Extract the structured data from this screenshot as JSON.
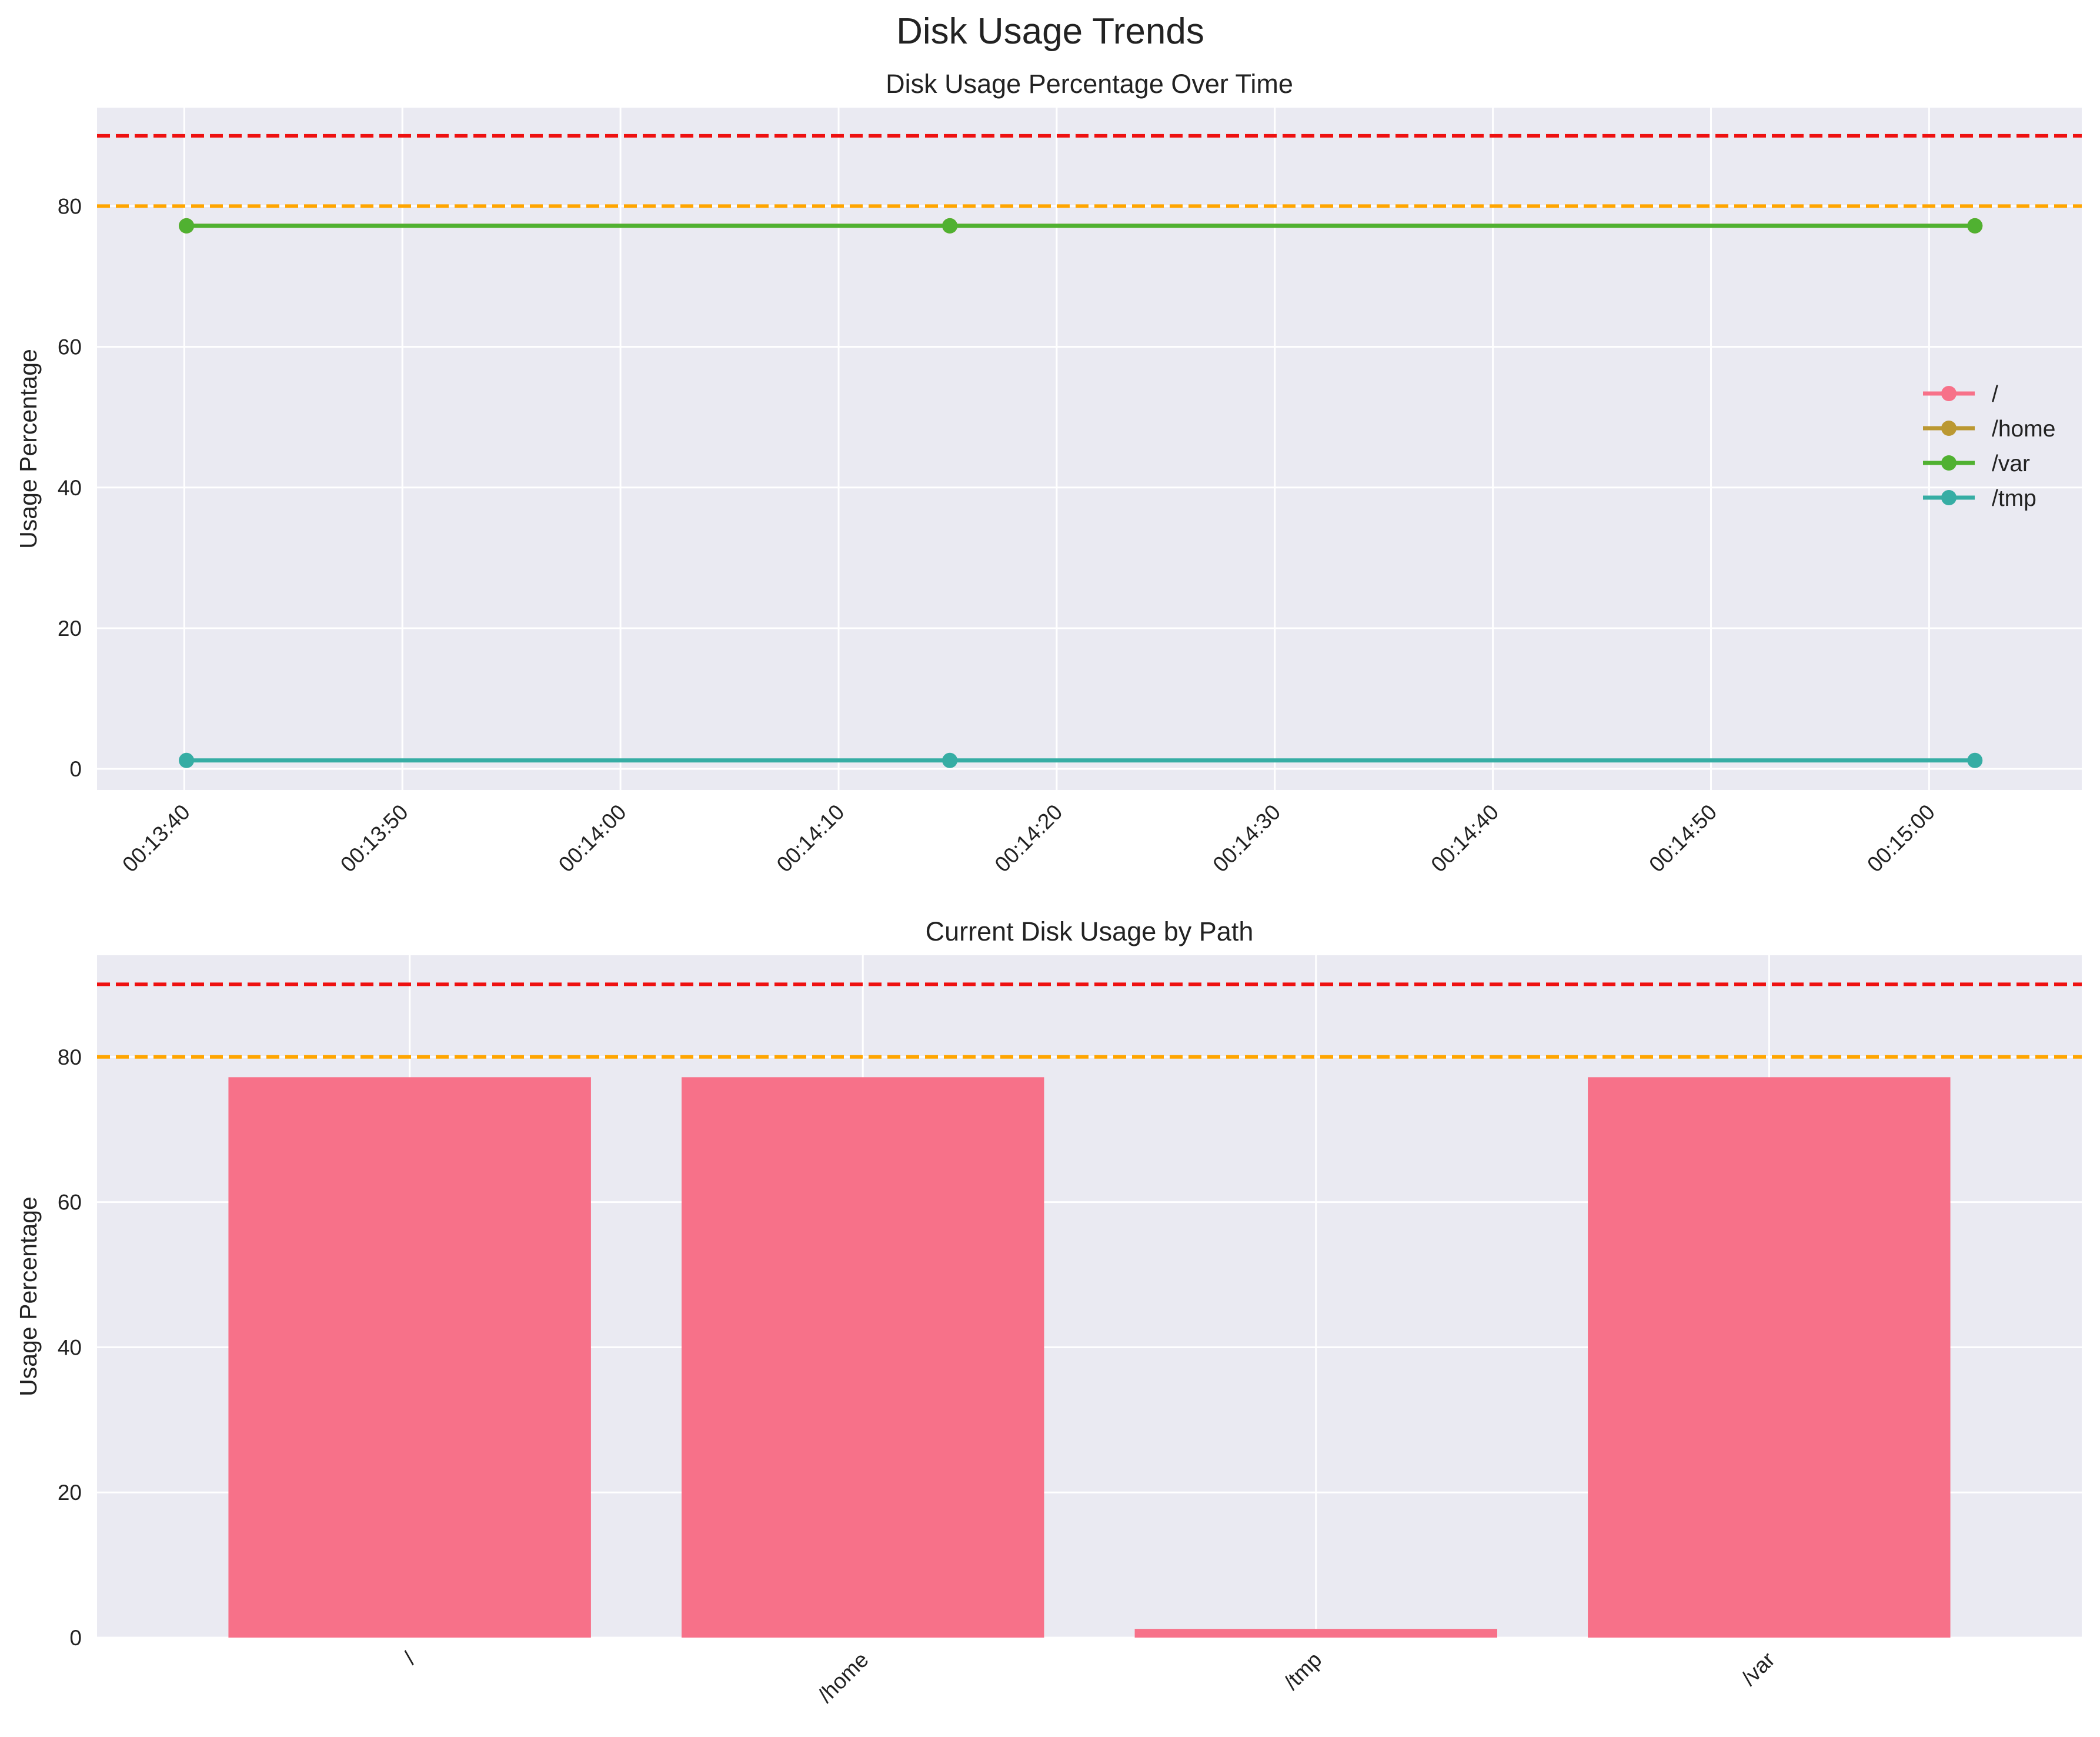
{
  "suptitle": "Disk Usage Trends",
  "colors": {
    "axes_bg": "#eaeaf2",
    "grid": "#ffffff",
    "critical_line": "#ee1111",
    "warning_line": "#ffa500",
    "bar": "#f77189"
  },
  "chart_data": [
    {
      "type": "line",
      "title": "Disk Usage Percentage Over Time",
      "xlabel": "",
      "ylabel": "Usage Percentage",
      "x": [
        "00:13:40.1",
        "00:14:15.1",
        "00:15:02.1"
      ],
      "xticks": [
        "00:13:40",
        "00:13:50",
        "00:14:00",
        "00:14:10",
        "00:14:20",
        "00:14:30",
        "00:14:40",
        "00:14:50",
        "00:15:00"
      ],
      "xlim": [
        "00:13:36",
        "00:15:07"
      ],
      "ylim": [
        -3,
        94
      ],
      "yticks": [
        0,
        20,
        40,
        60,
        80
      ],
      "grid": true,
      "legend_position": "center-right",
      "series": [
        {
          "name": "/",
          "color": "#f77189",
          "values": [
            77.2,
            77.2,
            77.2
          ]
        },
        {
          "name": "/home",
          "color": "#bb9832",
          "values": [
            77.2,
            77.2,
            77.2
          ]
        },
        {
          "name": "/var",
          "color": "#50b131",
          "values": [
            77.2,
            77.2,
            77.2
          ]
        },
        {
          "name": "/tmp",
          "color": "#36ada4",
          "values": [
            1.2,
            1.2,
            1.2
          ]
        }
      ],
      "reference_lines": [
        {
          "y": 90,
          "color": "#ee1111",
          "style": "dashed"
        },
        {
          "y": 80,
          "color": "#ffa500",
          "style": "dashed"
        }
      ]
    },
    {
      "type": "bar",
      "title": "Current Disk Usage by Path",
      "xlabel": "",
      "ylabel": "Usage Percentage",
      "categories": [
        "/",
        "/home",
        "/tmp",
        "/var"
      ],
      "values": [
        77.2,
        77.2,
        1.2,
        77.2
      ],
      "ylim": [
        0,
        94
      ],
      "yticks": [
        0,
        20,
        40,
        60,
        80
      ],
      "grid": true,
      "reference_lines": [
        {
          "y": 90,
          "color": "#ee1111",
          "style": "dashed"
        },
        {
          "y": 80,
          "color": "#ffa500",
          "style": "dashed"
        }
      ]
    }
  ]
}
